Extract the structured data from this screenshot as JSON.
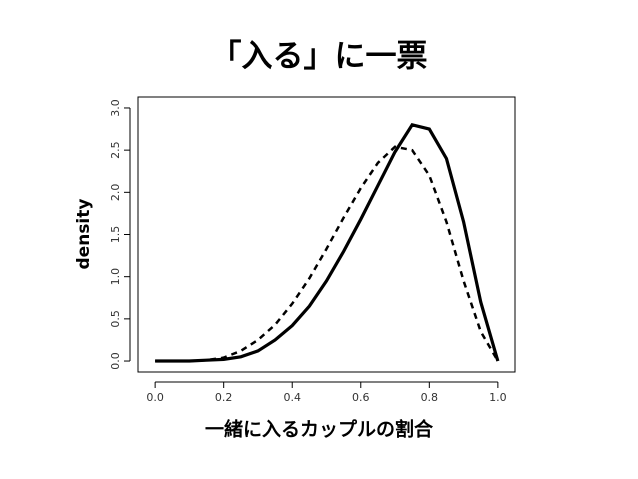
{
  "chart_data": {
    "type": "line",
    "title": "「入る」に一票",
    "xlabel": "一緒に入るカップルの割合",
    "ylabel": "density",
    "x": [
      0,
      0.05,
      0.1,
      0.15,
      0.2,
      0.25,
      0.3,
      0.35,
      0.4,
      0.45,
      0.5,
      0.55,
      0.6,
      0.65,
      0.7,
      0.75,
      0.8,
      0.85,
      0.9,
      0.95,
      1.0
    ],
    "series": [
      {
        "color": "#000000",
        "style": "solid",
        "values": [
          0,
          0,
          0,
          0.01,
          0.02,
          0.05,
          0.12,
          0.25,
          0.42,
          0.65,
          0.95,
          1.3,
          1.68,
          2.08,
          2.48,
          2.8,
          2.75,
          2.4,
          1.65,
          0.7,
          0
        ]
      },
      {
        "color": "#000000",
        "style": "dashed",
        "values": [
          0,
          0,
          0,
          0.01,
          0.04,
          0.12,
          0.25,
          0.43,
          0.68,
          0.98,
          1.33,
          1.7,
          2.05,
          2.35,
          2.54,
          2.5,
          2.2,
          1.65,
          0.95,
          0.35,
          0
        ]
      }
    ],
    "xlim": [
      -0.05,
      1.05
    ],
    "ylim": [
      -0.13,
      3.13
    ],
    "xticks": [
      {
        "value": 0,
        "label": "0.0"
      },
      0.2,
      0.4,
      0.6,
      0.8,
      {
        "value": 1,
        "label": "1.0"
      }
    ],
    "yticks": [
      {
        "value": 0,
        "label": "0.0"
      },
      0.5,
      {
        "value": 1,
        "label": "1.0"
      },
      1.5,
      {
        "value": 2,
        "label": "2.0"
      },
      2.5,
      {
        "value": 3,
        "label": "3.0"
      }
    ]
  }
}
